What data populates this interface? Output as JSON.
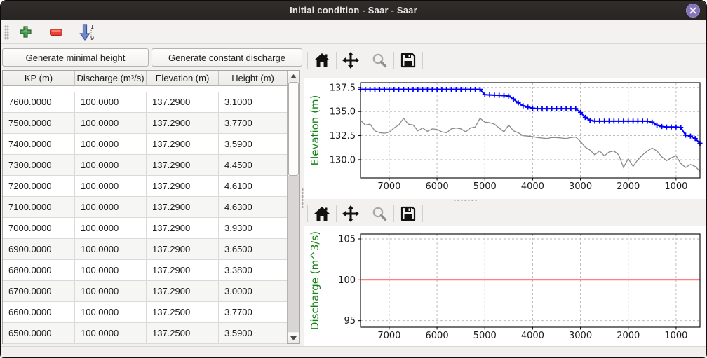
{
  "window": {
    "title": "Initial condition - Saar - Saar"
  },
  "titlebar": {
    "close_icon": "close-x"
  },
  "main_toolbar": {
    "icons": [
      "add-row",
      "remove-row",
      "sort-ascending"
    ],
    "sort_icon_digits": [
      "1",
      "9"
    ]
  },
  "left_panel": {
    "buttons": {
      "minimal_height": "Generate minimal height",
      "constant_discharge": "Generate constant discharge"
    },
    "table": {
      "columns": [
        "KP (m)",
        "Discharge (m³/s)",
        "Elevation (m)",
        "Height (m)"
      ],
      "rows": [
        [
          "7600.0000",
          "100.0000",
          "137.2900",
          "3.1000"
        ],
        [
          "7500.0000",
          "100.0000",
          "137.2900",
          "3.7700"
        ],
        [
          "7400.0000",
          "100.0000",
          "137.2900",
          "3.5900"
        ],
        [
          "7300.0000",
          "100.0000",
          "137.2900",
          "4.4500"
        ],
        [
          "7200.0000",
          "100.0000",
          "137.2900",
          "4.6100"
        ],
        [
          "7100.0000",
          "100.0000",
          "137.2900",
          "4.6300"
        ],
        [
          "7000.0000",
          "100.0000",
          "137.2900",
          "3.9300"
        ],
        [
          "6900.0000",
          "100.0000",
          "137.2900",
          "3.6500"
        ],
        [
          "6800.0000",
          "100.0000",
          "137.2900",
          "3.3800"
        ],
        [
          "6700.0000",
          "100.0000",
          "137.2900",
          "3.0000"
        ],
        [
          "6600.0000",
          "100.0000",
          "137.2500",
          "3.7700"
        ],
        [
          "6500.0000",
          "100.0000",
          "137.2500",
          "3.5900"
        ]
      ]
    }
  },
  "plot_toolbar": {
    "icons": [
      "home",
      "pan",
      "zoom",
      "save"
    ]
  },
  "chart_data": [
    {
      "type": "line",
      "title": "",
      "xlabel": "",
      "ylabel": "Elevation (m)",
      "ylabel_color": "#108210",
      "grid": true,
      "x_inverted": true,
      "xlim": [
        7600,
        500
      ],
      "ylim": [
        128.1,
        138.0
      ],
      "x_ticks": [
        "7000",
        "6000",
        "5000",
        "4000",
        "3000",
        "2000",
        "1000"
      ],
      "y_ticks": [
        "137.5",
        "135.0",
        "132.5",
        "130.0"
      ],
      "x": [
        7600,
        7500,
        7400,
        7300,
        7200,
        7100,
        7000,
        6900,
        6800,
        6700,
        6600,
        6500,
        6400,
        6300,
        6200,
        6100,
        6000,
        5900,
        5800,
        5700,
        5600,
        5500,
        5400,
        5300,
        5200,
        5100,
        5000,
        4900,
        4800,
        4700,
        4600,
        4500,
        4400,
        4300,
        4200,
        4100,
        4000,
        3900,
        3800,
        3700,
        3600,
        3500,
        3400,
        3300,
        3200,
        3100,
        3000,
        2900,
        2800,
        2700,
        2600,
        2500,
        2400,
        2300,
        2200,
        2100,
        2000,
        1900,
        1800,
        1700,
        1600,
        1500,
        1400,
        1300,
        1200,
        1100,
        1000,
        900,
        800,
        700,
        600,
        500
      ],
      "series": [
        {
          "name": "water-surface-elevation",
          "color": "#0000ff",
          "marker": "+",
          "line_width": 2,
          "values": [
            137.3,
            137.3,
            137.3,
            137.3,
            137.3,
            137.3,
            137.3,
            137.3,
            137.3,
            137.3,
            137.3,
            137.3,
            137.3,
            137.3,
            137.3,
            137.3,
            137.3,
            137.3,
            137.3,
            137.3,
            137.3,
            137.3,
            137.3,
            137.3,
            137.3,
            137.3,
            136.75,
            136.72,
            136.7,
            136.68,
            136.65,
            136.6,
            136.3,
            135.9,
            135.6,
            135.45,
            135.35,
            135.3,
            135.3,
            135.3,
            135.3,
            135.3,
            135.3,
            135.3,
            135.3,
            135.3,
            134.9,
            134.4,
            134.1,
            134.0,
            134.0,
            134.0,
            134.0,
            134.0,
            134.0,
            134.0,
            134.0,
            134.0,
            134.0,
            134.0,
            134.0,
            133.9,
            133.6,
            133.45,
            133.4,
            133.4,
            133.4,
            133.35,
            132.55,
            132.45,
            132.2,
            131.7
          ]
        },
        {
          "name": "bottom-elevation",
          "color": "#8a8a8a",
          "marker": "none",
          "line_width": 1.3,
          "values": [
            134.1,
            133.6,
            133.7,
            133.0,
            132.8,
            132.75,
            132.85,
            133.3,
            133.6,
            134.3,
            133.7,
            133.6,
            133.0,
            133.3,
            132.95,
            133.2,
            133.15,
            132.9,
            132.8,
            133.2,
            133.3,
            133.2,
            132.9,
            133.3,
            133.4,
            134.3,
            133.9,
            133.85,
            133.7,
            133.3,
            132.9,
            133.6,
            133.0,
            132.8,
            132.5,
            132.45,
            132.4,
            132.3,
            132.25,
            132.2,
            132.3,
            132.3,
            132.25,
            132.2,
            132.3,
            132.35,
            131.9,
            131.3,
            131.0,
            130.5,
            130.9,
            130.4,
            130.8,
            130.9,
            130.5,
            129.2,
            130.1,
            129.3,
            130.0,
            130.5,
            130.9,
            131.2,
            130.9,
            130.3,
            129.9,
            130.2,
            130.4,
            129.6,
            129.2,
            129.5,
            129.3,
            128.8
          ]
        }
      ]
    },
    {
      "type": "line",
      "title": "",
      "xlabel": "",
      "ylabel": "Discharge (m^3/s)",
      "ylabel_color": "#108210",
      "grid": true,
      "x_inverted": true,
      "xlim": [
        7600,
        500
      ],
      "ylim": [
        94.2,
        105.6
      ],
      "x_ticks": [
        "7000",
        "6000",
        "5000",
        "4000",
        "3000",
        "2000",
        "1000"
      ],
      "y_ticks": [
        "105",
        "100",
        "95"
      ],
      "x": [
        7600,
        500
      ],
      "series": [
        {
          "name": "constant-discharge",
          "color": "#ff0000",
          "marker": "none",
          "line_width": 1.6,
          "values": [
            100,
            100
          ]
        }
      ]
    }
  ]
}
